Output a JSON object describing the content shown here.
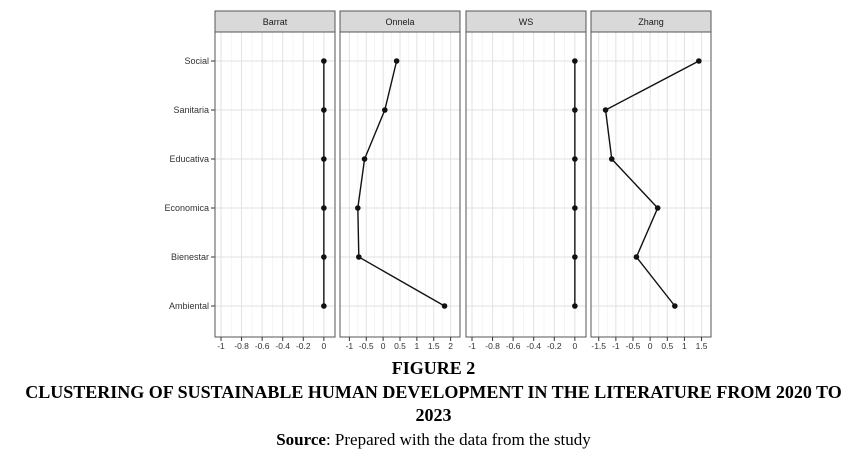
{
  "chart_data": {
    "type": "line",
    "categories": [
      "Social",
      "Sanitaria",
      "Educativa",
      "Economica",
      "Bienestar",
      "Ambiental"
    ],
    "panels": [
      {
        "name": "Barrat",
        "xticks": [
          "-1",
          "-0.8",
          "-0.6",
          "-0.4",
          "-0.2",
          "0"
        ],
        "xlim": [
          -1,
          0.05
        ],
        "values": [
          0,
          0,
          0,
          0,
          0,
          0
        ]
      },
      {
        "name": "Onnela",
        "xticks": [
          "-1",
          "-0.5",
          "0",
          "0.5",
          "1",
          "1.5",
          "2"
        ],
        "xlim": [
          -1.1,
          2.1
        ],
        "values": [
          0.4,
          0.05,
          -0.55,
          -0.75,
          -0.72,
          1.82
        ]
      },
      {
        "name": "WS",
        "xticks": [
          "-1",
          "-0.8",
          "-0.6",
          "-0.4",
          "-0.2",
          "0"
        ],
        "xlim": [
          -1,
          0.05
        ],
        "values": [
          0,
          0,
          0,
          0,
          0,
          0
        ]
      },
      {
        "name": "Zhang",
        "xticks": [
          "-1.5",
          "-1",
          "-0.5",
          "0",
          "0.5",
          "1",
          "1.5"
        ],
        "xlim": [
          -1.55,
          1.6
        ],
        "values": [
          1.42,
          -1.3,
          -1.12,
          0.22,
          -0.4,
          0.72
        ]
      }
    ],
    "grid": true,
    "legend": "none"
  },
  "caption": {
    "figure": "FIGURE 2",
    "title": "CLUSTERING OF SUSTAINABLE HUMAN DEVELOPMENT IN THE LITERATURE FROM 2020 TO 2023",
    "source_label": "Source",
    "source_text": ": Prepared with the data from the study"
  }
}
